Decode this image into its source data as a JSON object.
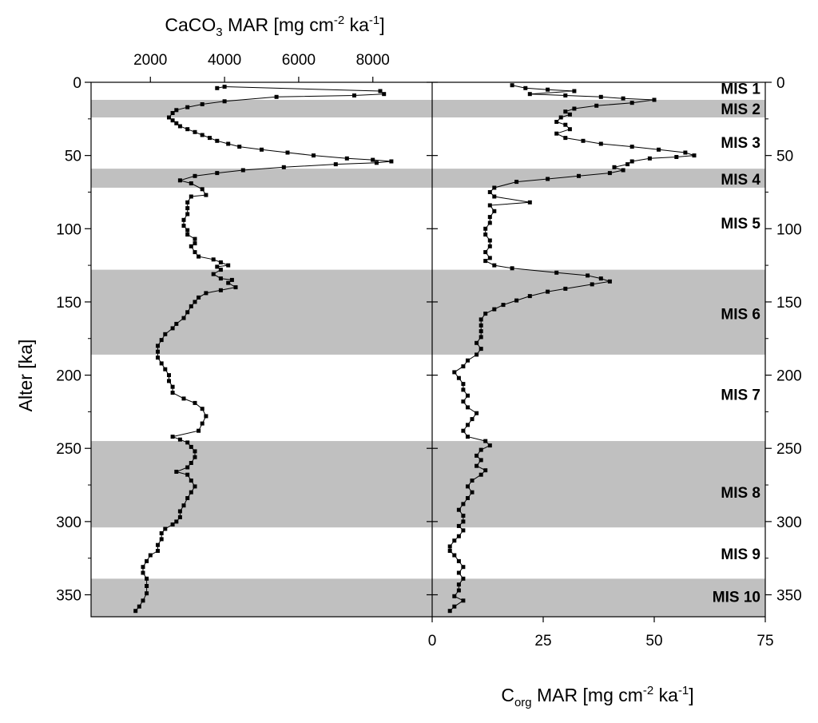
{
  "chart_data": {
    "type": "line",
    "y_axis": {
      "label": "Alter [ka]",
      "range": [
        0,
        365
      ],
      "ticks": [
        "0",
        "50",
        "100",
        "150",
        "200",
        "250",
        "300",
        "350"
      ],
      "inverted": true
    },
    "top_axis": {
      "label_main": "CaCO",
      "label_sub": "3",
      "label_rest": " MAR [mg cm",
      "label_exp1": "-2",
      "label_mid": " ka",
      "label_exp2": "-1",
      "label_end": "]",
      "range": [
        400,
        9600
      ],
      "ticks": [
        "2000",
        "4000",
        "6000",
        "8000"
      ]
    },
    "bottom_axis": {
      "label_main": "C",
      "label_sub": "org",
      "label_rest": " MAR [mg cm",
      "label_exp1": "-2",
      "label_mid": " ka",
      "label_exp2": "-1",
      "label_end": "]",
      "range": [
        0,
        75
      ],
      "ticks": [
        "0",
        "25",
        "50",
        "75"
      ]
    },
    "marine_isotope_stages": [
      {
        "name": "MIS 1",
        "top": 0,
        "bottom": 12,
        "shaded": false,
        "label_y": 4
      },
      {
        "name": "MIS 2",
        "top": 12,
        "bottom": 24,
        "shaded": true,
        "label_y": 18
      },
      {
        "name": "MIS 3",
        "top": 24,
        "bottom": 59,
        "shaded": false,
        "label_y": 41
      },
      {
        "name": "MIS 4",
        "top": 59,
        "bottom": 72,
        "shaded": true,
        "label_y": 66
      },
      {
        "name": "MIS 5",
        "top": 72,
        "bottom": 128,
        "shaded": false,
        "label_y": 96
      },
      {
        "name": "MIS 6",
        "top": 128,
        "bottom": 186,
        "shaded": true,
        "label_y": 158
      },
      {
        "name": "MIS 7",
        "top": 186,
        "bottom": 245,
        "shaded": false,
        "label_y": 213
      },
      {
        "name": "MIS 8",
        "top": 245,
        "bottom": 304,
        "shaded": true,
        "label_y": 280
      },
      {
        "name": "MIS 9",
        "top": 304,
        "bottom": 339,
        "shaded": false,
        "label_y": 322
      },
      {
        "name": "MIS 10",
        "top": 339,
        "bottom": 365,
        "shaded": true,
        "label_y": 351
      }
    ],
    "series": [
      {
        "axis": "top",
        "marker": "square",
        "points": [
          [
            3800,
            4
          ],
          [
            4000,
            3
          ],
          [
            8200,
            6
          ],
          [
            8300,
            8
          ],
          [
            7500,
            9
          ],
          [
            5400,
            10
          ],
          [
            4000,
            13
          ],
          [
            3400,
            15
          ],
          [
            3000,
            17
          ],
          [
            2700,
            19
          ],
          [
            2600,
            21
          ],
          [
            2500,
            24
          ],
          [
            2600,
            26
          ],
          [
            2700,
            28
          ],
          [
            2800,
            30
          ],
          [
            3000,
            32
          ],
          [
            3200,
            34
          ],
          [
            3400,
            36
          ],
          [
            3600,
            38
          ],
          [
            3800,
            40
          ],
          [
            4100,
            42
          ],
          [
            4400,
            44
          ],
          [
            5000,
            46
          ],
          [
            5700,
            48
          ],
          [
            6400,
            50
          ],
          [
            7300,
            52
          ],
          [
            8000,
            53
          ],
          [
            8500,
            54
          ],
          [
            8100,
            55
          ],
          [
            7000,
            56
          ],
          [
            5600,
            58
          ],
          [
            4500,
            60
          ],
          [
            3800,
            62
          ],
          [
            3200,
            64
          ],
          [
            2800,
            67
          ],
          [
            3100,
            69
          ],
          [
            3400,
            73
          ],
          [
            3500,
            77
          ],
          [
            3100,
            78
          ],
          [
            3000,
            82
          ],
          [
            3000,
            86
          ],
          [
            3000,
            90
          ],
          [
            2900,
            94
          ],
          [
            2900,
            98
          ],
          [
            3000,
            101
          ],
          [
            3000,
            104
          ],
          [
            3200,
            107
          ],
          [
            3200,
            110
          ],
          [
            3100,
            112
          ],
          [
            3200,
            116
          ],
          [
            3300,
            119
          ],
          [
            3700,
            121
          ],
          [
            3900,
            123
          ],
          [
            4100,
            125
          ],
          [
            3800,
            126
          ],
          [
            3900,
            128
          ],
          [
            3700,
            131
          ],
          [
            3900,
            134
          ],
          [
            4200,
            135
          ],
          [
            4100,
            137
          ],
          [
            4300,
            140
          ],
          [
            3900,
            142
          ],
          [
            3500,
            144
          ],
          [
            3300,
            147
          ],
          [
            3200,
            150
          ],
          [
            3100,
            153
          ],
          [
            3000,
            157
          ],
          [
            2900,
            161
          ],
          [
            2700,
            165
          ],
          [
            2600,
            168
          ],
          [
            2400,
            172
          ],
          [
            2300,
            176
          ],
          [
            2200,
            180
          ],
          [
            2200,
            184
          ],
          [
            2200,
            188
          ],
          [
            2300,
            192
          ],
          [
            2400,
            196
          ],
          [
            2500,
            200
          ],
          [
            2500,
            204
          ],
          [
            2600,
            208
          ],
          [
            2600,
            212
          ],
          [
            2900,
            216
          ],
          [
            3200,
            219
          ],
          [
            3400,
            223
          ],
          [
            3500,
            228
          ],
          [
            3400,
            233
          ],
          [
            3300,
            238
          ],
          [
            2600,
            242
          ],
          [
            2800,
            244
          ],
          [
            3000,
            246
          ],
          [
            3100,
            249
          ],
          [
            3200,
            252
          ],
          [
            3200,
            256
          ],
          [
            3100,
            260
          ],
          [
            3000,
            263
          ],
          [
            2700,
            266
          ],
          [
            3000,
            268
          ],
          [
            3100,
            272
          ],
          [
            3200,
            276
          ],
          [
            3100,
            280
          ],
          [
            3000,
            284
          ],
          [
            2900,
            289
          ],
          [
            2800,
            293
          ],
          [
            2800,
            297
          ],
          [
            2700,
            300
          ],
          [
            2600,
            302
          ],
          [
            2400,
            305
          ],
          [
            2300,
            308
          ],
          [
            2300,
            312
          ],
          [
            2200,
            316
          ],
          [
            2200,
            320
          ],
          [
            2000,
            323
          ],
          [
            1900,
            327
          ],
          [
            1800,
            331
          ],
          [
            1800,
            335
          ],
          [
            1900,
            339
          ],
          [
            1900,
            344
          ],
          [
            1900,
            349
          ],
          [
            1800,
            354
          ],
          [
            1700,
            358
          ],
          [
            1600,
            361
          ]
        ]
      },
      {
        "axis": "bottom",
        "marker": "square",
        "points": [
          [
            18,
            2
          ],
          [
            21,
            4
          ],
          [
            26,
            5
          ],
          [
            32,
            6
          ],
          [
            22,
            8
          ],
          [
            30,
            9
          ],
          [
            38,
            10
          ],
          [
            43,
            11
          ],
          [
            50,
            12
          ],
          [
            45,
            14
          ],
          [
            37,
            16
          ],
          [
            32,
            18
          ],
          [
            30,
            20
          ],
          [
            31,
            22
          ],
          [
            29,
            24
          ],
          [
            28,
            27
          ],
          [
            30,
            29
          ],
          [
            31,
            32
          ],
          [
            28,
            35
          ],
          [
            30,
            38
          ],
          [
            34,
            40
          ],
          [
            38,
            42
          ],
          [
            45,
            44
          ],
          [
            51,
            46
          ],
          [
            57,
            48
          ],
          [
            59,
            50
          ],
          [
            55,
            51
          ],
          [
            49,
            52
          ],
          [
            45,
            54
          ],
          [
            44,
            56
          ],
          [
            41,
            58
          ],
          [
            43,
            60
          ],
          [
            40,
            62
          ],
          [
            33,
            64
          ],
          [
            26,
            66
          ],
          [
            19,
            68
          ],
          [
            14,
            72
          ],
          [
            13,
            75
          ],
          [
            14,
            78
          ],
          [
            22,
            82
          ],
          [
            13,
            84
          ],
          [
            14,
            88
          ],
          [
            13,
            92
          ],
          [
            13,
            96
          ],
          [
            12,
            100
          ],
          [
            12,
            104
          ],
          [
            13,
            108
          ],
          [
            13,
            112
          ],
          [
            12,
            116
          ],
          [
            13,
            120
          ],
          [
            12,
            122
          ],
          [
            14,
            125
          ],
          [
            18,
            127
          ],
          [
            28,
            130
          ],
          [
            35,
            132
          ],
          [
            38,
            134
          ],
          [
            40,
            136
          ],
          [
            36,
            138
          ],
          [
            30,
            141
          ],
          [
            26,
            143
          ],
          [
            22,
            146
          ],
          [
            19,
            149
          ],
          [
            16,
            152
          ],
          [
            14,
            155
          ],
          [
            12,
            158
          ],
          [
            11,
            162
          ],
          [
            11,
            166
          ],
          [
            11,
            170
          ],
          [
            11,
            174
          ],
          [
            10,
            178
          ],
          [
            11,
            182
          ],
          [
            10,
            186
          ],
          [
            8,
            190
          ],
          [
            7,
            194
          ],
          [
            5,
            198
          ],
          [
            6,
            202
          ],
          [
            7,
            206
          ],
          [
            7,
            210
          ],
          [
            8,
            214
          ],
          [
            7,
            218
          ],
          [
            8,
            222
          ],
          [
            10,
            226
          ],
          [
            9,
            230
          ],
          [
            8,
            234
          ],
          [
            7,
            238
          ],
          [
            8,
            242
          ],
          [
            12,
            245
          ],
          [
            13,
            248
          ],
          [
            11,
            251
          ],
          [
            10,
            255
          ],
          [
            11,
            258
          ],
          [
            10,
            262
          ],
          [
            12,
            265
          ],
          [
            11,
            268
          ],
          [
            9,
            272
          ],
          [
            8,
            276
          ],
          [
            9,
            280
          ],
          [
            8,
            284
          ],
          [
            7,
            288
          ],
          [
            6,
            292
          ],
          [
            7,
            296
          ],
          [
            7,
            300
          ],
          [
            6,
            303
          ],
          [
            7,
            306
          ],
          [
            6,
            310
          ],
          [
            5,
            313
          ],
          [
            4,
            317
          ],
          [
            4,
            320
          ],
          [
            5,
            323
          ],
          [
            6,
            327
          ],
          [
            7,
            331
          ],
          [
            6,
            335
          ],
          [
            7,
            339
          ],
          [
            6,
            343
          ],
          [
            6,
            347
          ],
          [
            5,
            351
          ],
          [
            7,
            354
          ],
          [
            5,
            358
          ],
          [
            4,
            361
          ]
        ]
      }
    ]
  }
}
